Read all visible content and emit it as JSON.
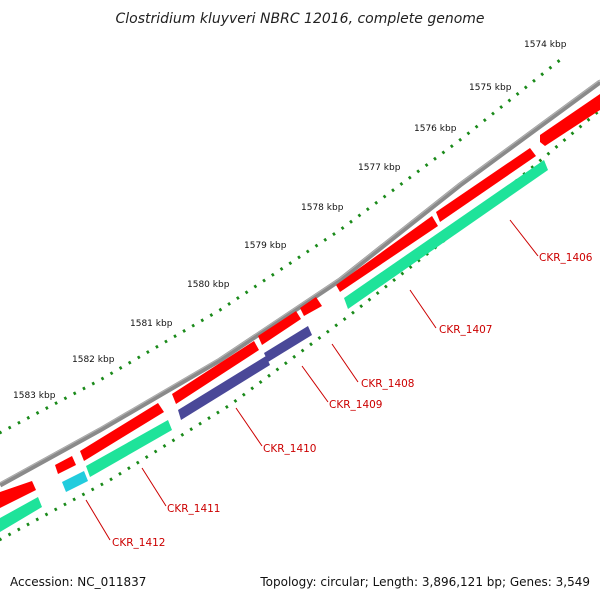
{
  "title": "Clostridium kluyveri NBRC 12016, complete genome",
  "footer": {
    "accession": "Accession: NC_011837",
    "summary": "Topology: circular; Length: 3,896,121 bp; Genes: 3,549"
  },
  "colors": {
    "backbone": "#808080",
    "forward_gene": "#ff0000",
    "cds_teal": "#1ee39a",
    "cds_cyan": "#22ccdd",
    "cds_navy": "#4a4898",
    "tick_dots": "#1a8a1a",
    "gene_label": "#cc0000"
  },
  "scale": {
    "tick_labels": [
      "1574 kbp",
      "1575 kbp",
      "1576 kbp",
      "1577 kbp",
      "1578 kbp",
      "1579 kbp",
      "1580 kbp",
      "1581 kbp",
      "1582 kbp",
      "1583 kbp"
    ]
  },
  "genes": [
    {
      "locus": "CKR_1406"
    },
    {
      "locus": "CKR_1407"
    },
    {
      "locus": "CKR_1408"
    },
    {
      "locus": "CKR_1409"
    },
    {
      "locus": "CKR_1410"
    },
    {
      "locus": "CKR_1411"
    },
    {
      "locus": "CKR_1412"
    }
  ]
}
